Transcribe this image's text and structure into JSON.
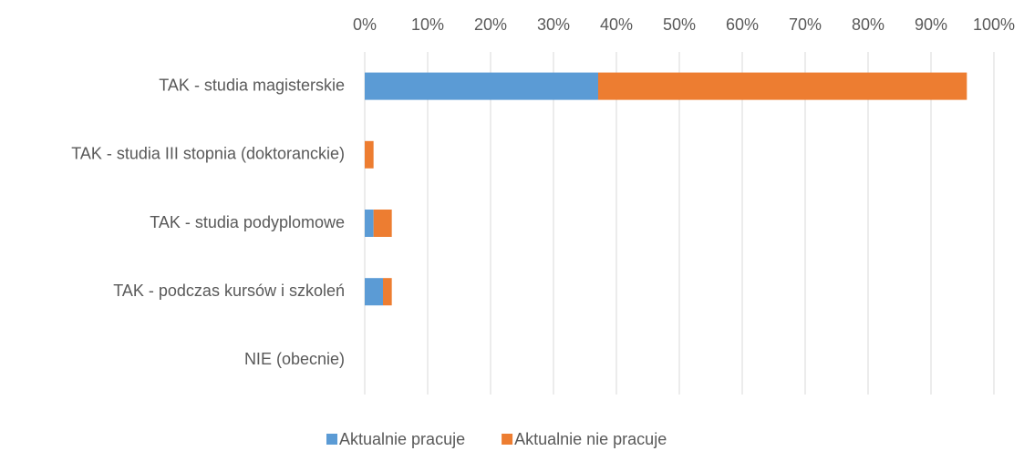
{
  "chart_data": {
    "type": "bar",
    "orientation": "horizontal",
    "stacked": true,
    "categories": [
      "TAK - studia magisterskie",
      "TAK - studia III stopnia (doktoranckie)",
      "TAK - studia podyplomowe",
      "TAK - podczas kursów i szkoleń",
      "NIE (obecnie)"
    ],
    "series": [
      {
        "name": "Aktualnie pracuje",
        "color": "#5b9bd5",
        "values": [
          37.1,
          0,
          1.4,
          2.9,
          0
        ]
      },
      {
        "name": "Aktualnie nie pracuje",
        "color": "#ed7d31",
        "values": [
          58.6,
          1.4,
          2.9,
          1.4,
          0
        ]
      }
    ],
    "xlim": [
      0,
      100
    ],
    "xticks": [
      {
        "value": 0,
        "label": "0%"
      },
      {
        "value": 10,
        "label": "10%"
      },
      {
        "value": 20,
        "label": "20%"
      },
      {
        "value": 30,
        "label": "30%"
      },
      {
        "value": 40,
        "label": "40%"
      },
      {
        "value": 50,
        "label": "50%"
      },
      {
        "value": 60,
        "label": "60%"
      },
      {
        "value": 70,
        "label": "70%"
      },
      {
        "value": 80,
        "label": "80%"
      },
      {
        "value": 90,
        "label": "90%"
      },
      {
        "value": 100,
        "label": "100%"
      }
    ],
    "grid": true,
    "legend": "bottom"
  }
}
